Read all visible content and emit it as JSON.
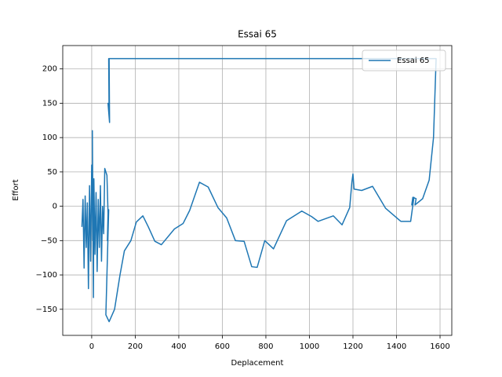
{
  "chart_data": {
    "type": "line",
    "title": "Essai 65",
    "x_label": "Deplacement",
    "y_label": "Effort",
    "x": [
      -45,
      -40,
      -35,
      -30,
      -25,
      -20,
      -15,
      -10,
      -5,
      0,
      5,
      3,
      8,
      10,
      15,
      20,
      25,
      30,
      35,
      40,
      45,
      50,
      55,
      60,
      70,
      75,
      72,
      78,
      70,
      65,
      80,
      105,
      130,
      150,
      180,
      205,
      235,
      260,
      290,
      320,
      380,
      420,
      450,
      495,
      535,
      580,
      620,
      660,
      700,
      735,
      760,
      795,
      835,
      895,
      965,
      1010,
      1040,
      1110,
      1150,
      1185,
      1195,
      1200,
      1205,
      1240,
      1290,
      1350,
      1420,
      1465,
      1480,
      1470,
      1475,
      1490,
      1485,
      1520,
      1550,
      1570,
      1582,
      78,
      80,
      75,
      82,
      80
    ],
    "series": [
      {
        "name": "Essai 65",
        "color": "#1f77b4",
        "values": [
          -30,
          10,
          -90,
          15,
          -60,
          5,
          -120,
          30,
          -80,
          60,
          -50,
          110,
          -133,
          40,
          -70,
          20,
          -95,
          10,
          -60,
          30,
          -80,
          0,
          -40,
          55,
          45,
          -10,
          -50,
          -5,
          -100,
          -158,
          -168,
          -150,
          -100,
          -65,
          -50,
          -23,
          -14,
          -30,
          -51,
          -56,
          -33,
          -25,
          -6,
          35,
          28,
          -2,
          -17,
          -50,
          -51,
          -88,
          -89,
          -50,
          -62,
          -21,
          -7,
          -15,
          -22,
          -14,
          -27,
          -2,
          35,
          47,
          25,
          23,
          29,
          -3,
          -22,
          -22,
          13,
          2,
          13,
          11,
          2,
          11,
          38,
          100,
          215,
          215,
          130,
          150,
          122,
          215
        ]
      }
    ],
    "xlim": [
      -133,
      1654
    ],
    "ylim": [
      -188,
      234
    ],
    "xticks": [
      0,
      200,
      400,
      600,
      800,
      1000,
      1200,
      1400,
      1600
    ],
    "yticks": [
      {
        "value": -150,
        "label": "−150"
      },
      {
        "value": -100,
        "label": "−100"
      },
      {
        "value": -50,
        "label": "−50"
      },
      0,
      50,
      100,
      150,
      200
    ],
    "grid": true,
    "legend": "upper right"
  }
}
